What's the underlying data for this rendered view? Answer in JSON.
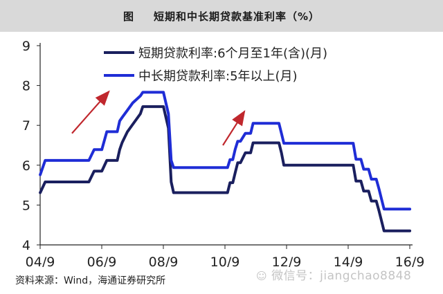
{
  "title": {
    "fig_label": "图",
    "text": "短期和中长期贷款基准利率（%）"
  },
  "source": "资料来源：Wind，海通证券研究所",
  "watermark": {
    "icon": "wechat-icon",
    "text": "微信号：jiangchao8848"
  },
  "chart_data": {
    "type": "line",
    "title": "短期和中长期贷款基准利率（%）",
    "xlabel": "",
    "ylabel": "",
    "xlim": [
      2004.667,
      2016.667
    ],
    "ylim": [
      4,
      9
    ],
    "yticks": [
      4,
      5,
      6,
      7,
      8,
      9
    ],
    "xtick_labels": [
      "04/9",
      "06/9",
      "08/9",
      "10/9",
      "12/9",
      "14/9",
      "16/9"
    ],
    "xtick_values": [
      2004.667,
      2006.667,
      2008.667,
      2010.667,
      2012.667,
      2014.667,
      2016.667
    ],
    "grid": false,
    "legend_position": "top-left",
    "series": [
      {
        "name": "短期贷款利率:6个月至1年(含)(月)",
        "color": "#1a1f5e",
        "x": [
          2004.67,
          2004.83,
          2005.0,
          2006.25,
          2006.42,
          2006.67,
          2006.83,
          2007.17,
          2007.25,
          2007.33,
          2007.5,
          2007.67,
          2007.92,
          2008.0,
          2008.67,
          2008.75,
          2008.83,
          2008.92,
          2009.0,
          2010.75,
          2010.83,
          2010.92,
          2011.0,
          2011.08,
          2011.17,
          2011.33,
          2011.5,
          2011.58,
          2011.92,
          2012.0,
          2012.42,
          2012.5,
          2012.58,
          2014.83,
          2014.92,
          2015.08,
          2015.17,
          2015.33,
          2015.42,
          2015.58,
          2015.67,
          2015.75,
          2015.83,
          2016.67
        ],
        "values": [
          5.31,
          5.58,
          5.58,
          5.58,
          5.85,
          5.85,
          6.12,
          6.12,
          6.39,
          6.57,
          6.84,
          7.02,
          7.29,
          7.47,
          7.47,
          7.2,
          6.93,
          5.58,
          5.31,
          5.31,
          5.56,
          5.56,
          5.81,
          6.06,
          6.06,
          6.31,
          6.31,
          6.56,
          6.56,
          6.56,
          6.56,
          6.31,
          6.0,
          6.0,
          5.6,
          5.6,
          5.35,
          5.35,
          5.1,
          5.1,
          4.85,
          4.6,
          4.35,
          4.35
        ]
      },
      {
        "name": "中长期贷款利率:5年以上(月)",
        "color": "#1f2dd6",
        "x": [
          2004.67,
          2004.83,
          2005.0,
          2006.25,
          2006.42,
          2006.67,
          2006.83,
          2007.17,
          2007.25,
          2007.33,
          2007.5,
          2007.67,
          2007.92,
          2008.0,
          2008.67,
          2008.75,
          2008.83,
          2008.92,
          2009.0,
          2010.75,
          2010.83,
          2010.92,
          2011.0,
          2011.08,
          2011.17,
          2011.33,
          2011.5,
          2011.58,
          2011.92,
          2012.0,
          2012.42,
          2012.5,
          2012.58,
          2014.83,
          2014.92,
          2015.08,
          2015.17,
          2015.33,
          2015.42,
          2015.58,
          2015.67,
          2015.75,
          2015.83,
          2016.67
        ],
        "values": [
          5.76,
          6.12,
          6.12,
          6.12,
          6.39,
          6.39,
          6.84,
          6.84,
          7.11,
          7.2,
          7.38,
          7.56,
          7.74,
          7.83,
          7.83,
          7.56,
          7.29,
          6.12,
          5.94,
          5.94,
          6.14,
          6.14,
          6.4,
          6.6,
          6.6,
          6.8,
          6.8,
          7.05,
          7.05,
          7.05,
          7.05,
          6.8,
          6.55,
          6.55,
          6.15,
          6.15,
          5.9,
          5.9,
          5.65,
          5.65,
          5.4,
          5.15,
          4.9,
          4.9
        ]
      }
    ],
    "annotations": [
      {
        "type": "arrow",
        "color": "#c0272d",
        "from": [
          2005.7,
          6.8
        ],
        "to": [
          2006.9,
          7.85
        ]
      },
      {
        "type": "arrow",
        "color": "#c0272d",
        "from": [
          2010.6,
          6.5
        ],
        "to": [
          2011.3,
          7.35
        ]
      }
    ]
  }
}
